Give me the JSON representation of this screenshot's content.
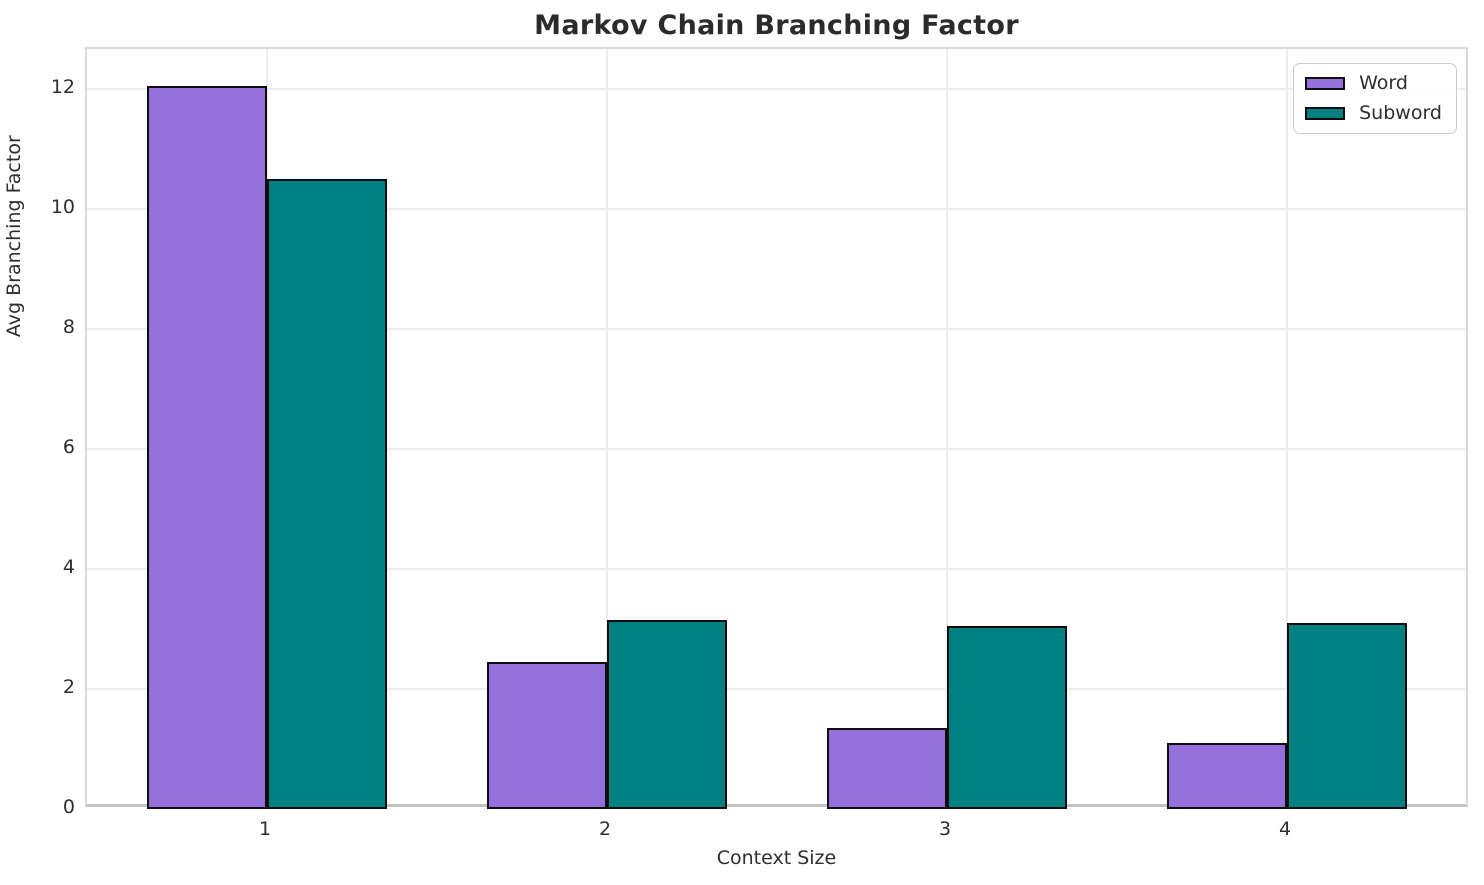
{
  "chart_data": {
    "type": "bar",
    "title": "Markov Chain Branching Factor",
    "xlabel": "Context Size",
    "ylabel": "Avg Branching Factor",
    "categories": [
      "1",
      "2",
      "3",
      "4"
    ],
    "series": [
      {
        "name": "Word",
        "color": "#9370DB",
        "values": [
          12.05,
          2.45,
          1.35,
          1.1
        ]
      },
      {
        "name": "Subword",
        "color": "#008080",
        "values": [
          10.5,
          3.15,
          3.05,
          3.1
        ]
      }
    ],
    "ylim": [
      0,
      12.67
    ],
    "yticks": [
      0,
      2,
      4,
      6,
      8,
      10,
      12
    ],
    "grid": true,
    "bar_edge_color": "#0d0d0d",
    "legend_position": "upper right"
  }
}
